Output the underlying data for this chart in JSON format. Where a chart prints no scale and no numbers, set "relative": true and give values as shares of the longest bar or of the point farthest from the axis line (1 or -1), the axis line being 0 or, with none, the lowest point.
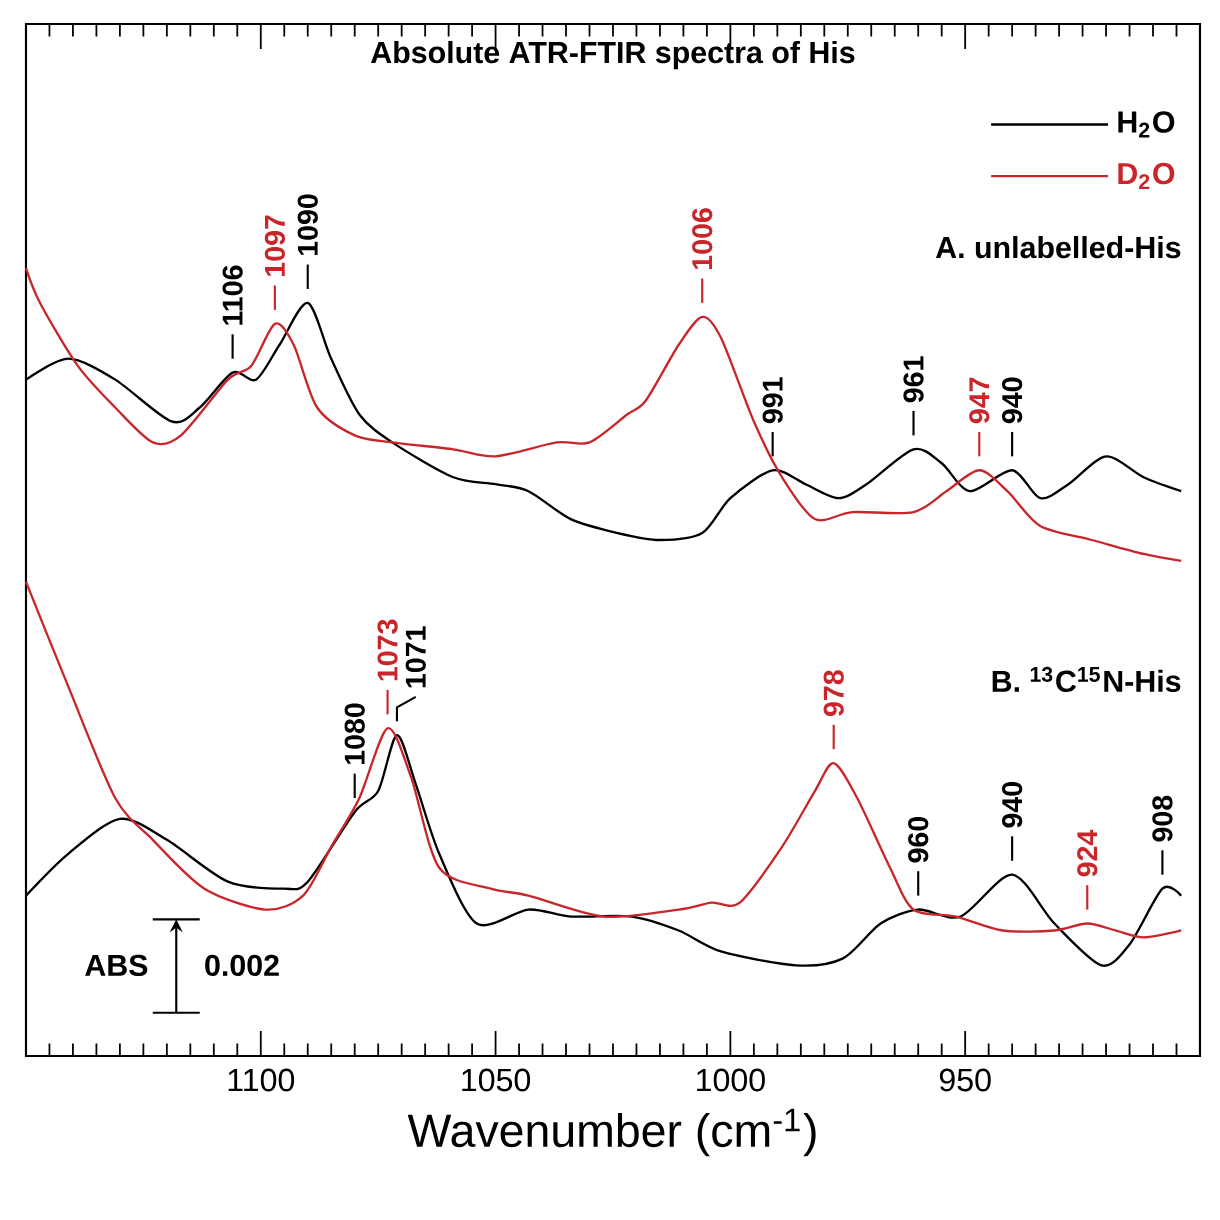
{
  "chart_data": {
    "type": "line",
    "title": "Absolute ATR-FTIR spectra of His",
    "xlabel": "Wavenumber (cm$^{-1}$)",
    "relative": true,
    "xlim": [
      1150,
      900
    ],
    "xticks": [
      1100,
      1050,
      1000,
      950
    ],
    "legend": "top right",
    "series": [
      {
        "name": "H$_{2}$O",
        "color": "#000000",
        "x": [
          1150,
          1141,
          1131,
          1119,
          1113,
          1106,
          1101,
          1096,
          1090,
          1085,
          1079,
          1072,
          1059,
          1050,
          1043,
          1034,
          1024,
          1015,
          1006,
          1000,
          991,
          984,
          977,
          971,
          961,
          955,
          949,
          940,
          934,
          928,
          920,
          912,
          904
        ],
        "values": [
          0.84,
          0.87,
          0.84,
          0.78,
          0.8,
          0.85,
          0.84,
          0.89,
          0.95,
          0.87,
          0.79,
          0.75,
          0.7,
          0.69,
          0.68,
          0.64,
          0.62,
          0.61,
          0.62,
          0.67,
          0.71,
          0.69,
          0.67,
          0.69,
          0.74,
          0.72,
          0.68,
          0.71,
          0.67,
          0.69,
          0.73,
          0.7,
          0.68
        ]
      },
      {
        "name": "D$_{2}$O",
        "color": "#c8262b",
        "x": [
          1150,
          1147,
          1139,
          1131,
          1123,
          1117,
          1107,
          1102,
          1097,
          1093,
          1088,
          1080,
          1072,
          1059,
          1050,
          1037,
          1030,
          1022,
          1018,
          1011,
          1006,
          1002,
          995,
          989,
          982,
          974,
          961,
          954,
          947,
          941,
          934,
          923,
          912,
          904
        ],
        "values": [
          1.0,
          0.95,
          0.86,
          0.8,
          0.75,
          0.76,
          0.84,
          0.86,
          0.92,
          0.89,
          0.8,
          0.76,
          0.75,
          0.74,
          0.73,
          0.75,
          0.75,
          0.79,
          0.81,
          0.89,
          0.93,
          0.9,
          0.78,
          0.7,
          0.64,
          0.65,
          0.65,
          0.68,
          0.71,
          0.68,
          0.63,
          0.61,
          0.59,
          0.58
        ]
      },
      {
        "color": "#000000",
        "x": [
          1150,
          1141,
          1130,
          1120,
          1107,
          1095,
          1090,
          1080,
          1075,
          1071,
          1067,
          1062,
          1054,
          1043,
          1034,
          1021,
          1011,
          1002,
          986,
          976,
          968,
          960,
          951,
          940,
          931,
          921,
          915,
          908,
          904
        ],
        "values": [
          0.1,
          0.16,
          0.21,
          0.18,
          0.12,
          0.11,
          0.12,
          0.22,
          0.25,
          0.33,
          0.26,
          0.16,
          0.06,
          0.08,
          0.07,
          0.07,
          0.05,
          0.02,
          0.0,
          0.01,
          0.06,
          0.08,
          0.07,
          0.13,
          0.06,
          0.0,
          0.03,
          0.11,
          0.1
        ]
      },
      {
        "color": "#c8262b",
        "x": [
          1150,
          1141,
          1131,
          1123,
          1112,
          1099,
          1091,
          1085,
          1079,
          1073,
          1068,
          1062,
          1051,
          1043,
          1027,
          1011,
          1004,
          998,
          989,
          982,
          978,
          973,
          966,
          961,
          952,
          942,
          931,
          924,
          918,
          912,
          904
        ],
        "values": [
          0.55,
          0.4,
          0.24,
          0.18,
          0.11,
          0.08,
          0.1,
          0.17,
          0.24,
          0.34,
          0.27,
          0.14,
          0.11,
          0.1,
          0.07,
          0.08,
          0.09,
          0.09,
          0.17,
          0.25,
          0.29,
          0.24,
          0.14,
          0.08,
          0.07,
          0.05,
          0.05,
          0.06,
          0.05,
          0.04,
          0.05
        ]
      }
    ],
    "annotations": [
      "A. unlabelled-His",
      "B. $^{13}$C$^{15}$N-His",
      "ABS",
      "0.002",
      {
        "text": "1106",
        "x": 1106,
        "y": 0.85
      },
      {
        "text": "1097",
        "x": 1097,
        "y": 0.92
      },
      {
        "text": "1090",
        "x": 1090,
        "y": 0.95
      },
      {
        "text": "1006",
        "x": 1006,
        "y": 0.93
      },
      {
        "text": "991",
        "x": 991,
        "y": 0.71
      },
      {
        "text": "961",
        "x": 961,
        "y": 0.74
      },
      {
        "text": "947",
        "x": 947,
        "y": 0.71
      },
      {
        "text": "940",
        "x": 940,
        "y": 0.71
      },
      {
        "text": "1080",
        "x": 1080,
        "y": 0.22
      },
      {
        "text": "1073",
        "x": 1073,
        "y": 0.34
      },
      {
        "text": "1071",
        "x": 1071,
        "y": 0.33
      },
      {
        "text": "978",
        "x": 978,
        "y": 0.29
      },
      {
        "text": "960",
        "x": 960,
        "y": 0.08
      },
      {
        "text": "940",
        "x": 940,
        "y": 0.13
      },
      {
        "text": "924",
        "x": 924,
        "y": 0.06
      },
      {
        "text": "908",
        "x": 908,
        "y": 0.11
      }
    ]
  }
}
